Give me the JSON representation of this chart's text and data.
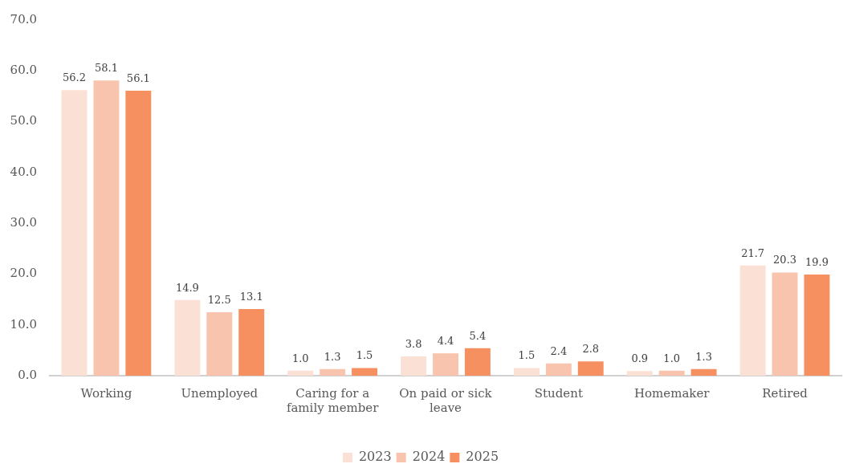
{
  "chart_data": {
    "type": "bar",
    "categories": [
      "Working",
      "Unemployed",
      "Caring for a family member",
      "On paid or sick leave",
      "Student",
      "Homemaker",
      "Retired"
    ],
    "series": [
      {
        "name": "2023",
        "color": "#fbe0d5",
        "values": [
          56.2,
          14.9,
          1.0,
          3.8,
          1.5,
          0.9,
          21.7
        ],
        "value_labels": [
          "56.2",
          "14.9",
          "1.0",
          "3.8",
          "1.5",
          "0.9",
          "21.7"
        ]
      },
      {
        "name": "2024",
        "color": "#f9c4ad",
        "values": [
          58.1,
          12.5,
          1.3,
          4.4,
          2.4,
          1.0,
          20.3
        ],
        "value_labels": [
          "58.1",
          "12.5",
          "1.3",
          "4.4",
          "2.4",
          "1.0",
          "20.3"
        ]
      },
      {
        "name": "2025",
        "color": "#f79061",
        "values": [
          56.1,
          13.1,
          1.5,
          5.4,
          2.8,
          1.3,
          19.9
        ],
        "value_labels": [
          "56.1",
          "13.1",
          "1.5",
          "5.4",
          "2.8",
          "1.3",
          "19.9"
        ]
      }
    ],
    "ylim": [
      0,
      70
    ],
    "yticks": [
      {
        "value": 0,
        "label": "0.0"
      },
      {
        "value": 10,
        "label": "10.0"
      },
      {
        "value": 20,
        "label": "20.0"
      },
      {
        "value": 30,
        "label": "30.0"
      },
      {
        "value": 40,
        "label": "40.0"
      },
      {
        "value": 50,
        "label": "50.0"
      },
      {
        "value": 60,
        "label": "60.0"
      },
      {
        "value": 70,
        "label": "70.0"
      }
    ],
    "legend": "bottom"
  }
}
